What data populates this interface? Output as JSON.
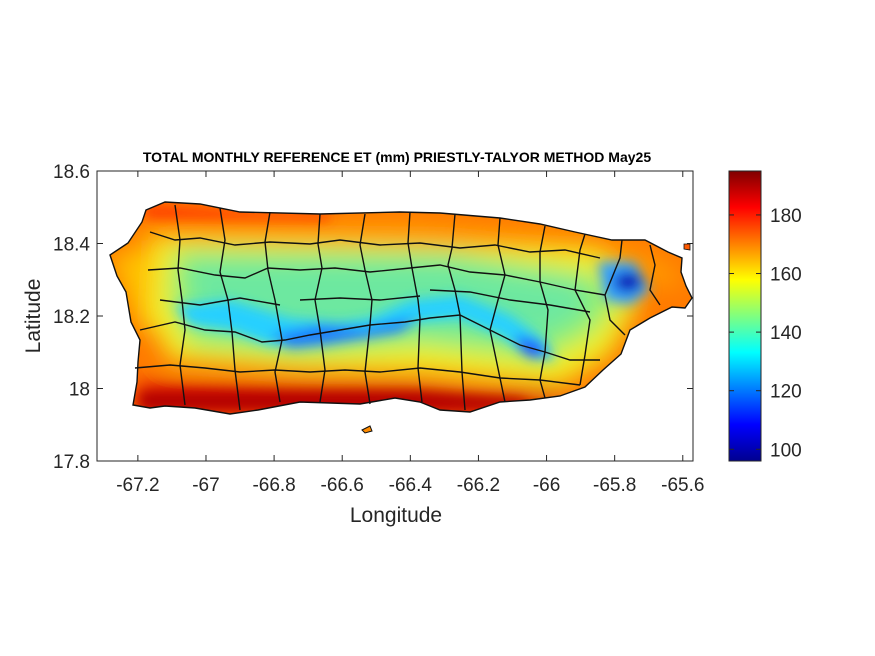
{
  "chart_data": {
    "type": "heatmap",
    "title": "TOTAL MONTHLY REFERENCE ET (mm) PRIESTLY-TALYOR METHOD May25",
    "xlabel": "Longitude",
    "ylabel": "Latitude",
    "xlim": [
      -67.32,
      -65.57
    ],
    "ylim": [
      17.8,
      18.6
    ],
    "xticks": [
      -67.2,
      -67,
      -66.8,
      -66.6,
      -66.4,
      -66.2,
      -66,
      -65.8,
      -65.6
    ],
    "xtick_labels": [
      "-67.2",
      "-67",
      "-66.8",
      "-66.6",
      "-66.4",
      "-66.2",
      "-66",
      "-65.8",
      "-65.6"
    ],
    "yticks": [
      17.8,
      18,
      18.2,
      18.4,
      18.6
    ],
    "ytick_labels": [
      "17.8",
      "18",
      "18.2",
      "18.4",
      "18.6"
    ],
    "colorbar": {
      "colormap": "jet",
      "range": [
        96,
        195
      ],
      "ticks": [
        100,
        120,
        140,
        160,
        180
      ],
      "tick_labels": [
        "100",
        "120",
        "140",
        "160",
        "180"
      ]
    },
    "zones": [
      {
        "region": "south coast",
        "value": 190
      },
      {
        "region": "north coast",
        "value": 180
      },
      {
        "region": "west coast",
        "value": 172
      },
      {
        "region": "northern interior",
        "value": 155
      },
      {
        "region": "central mountains (Cordillera Central)",
        "value": 133
      },
      {
        "region": "eastern interior near -66.05",
        "value": 128
      },
      {
        "region": "El Yunque area near -65.78, 18.28",
        "value": 100
      }
    ]
  }
}
